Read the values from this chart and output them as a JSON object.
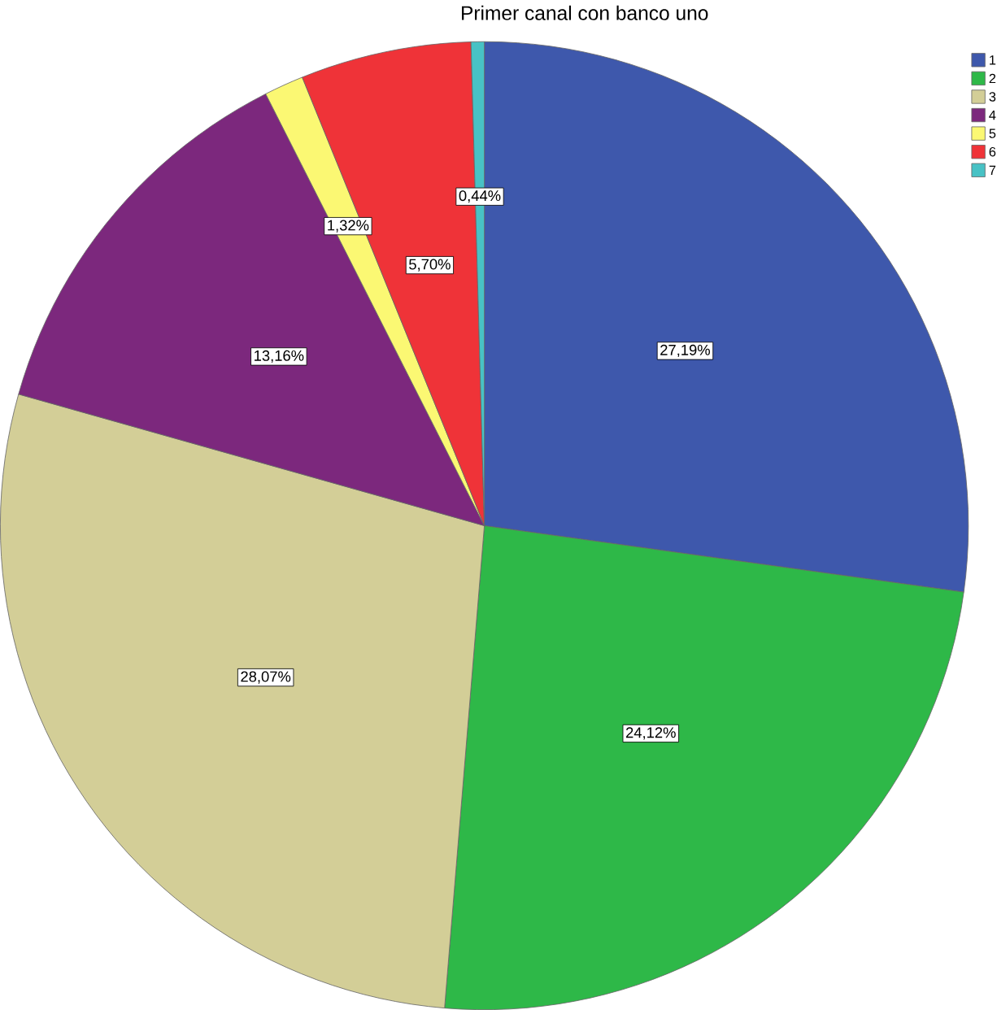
{
  "chart_data": {
    "type": "pie",
    "title": "Primer canal con banco uno",
    "categories": [
      "1",
      "2",
      "3",
      "4",
      "5",
      "6",
      "7"
    ],
    "values": [
      27.19,
      24.12,
      28.07,
      13.16,
      1.32,
      5.7,
      0.44
    ],
    "value_labels": [
      "27,19%",
      "24,12%",
      "28,07%",
      "13,16%",
      "1,32%",
      "5,70%",
      "0,44%"
    ],
    "colors": [
      "#3e58ac",
      "#2eb848",
      "#d3ce97",
      "#7c287d",
      "#fbf873",
      "#ef3338",
      "#48c2c5"
    ],
    "legend": "top right"
  }
}
